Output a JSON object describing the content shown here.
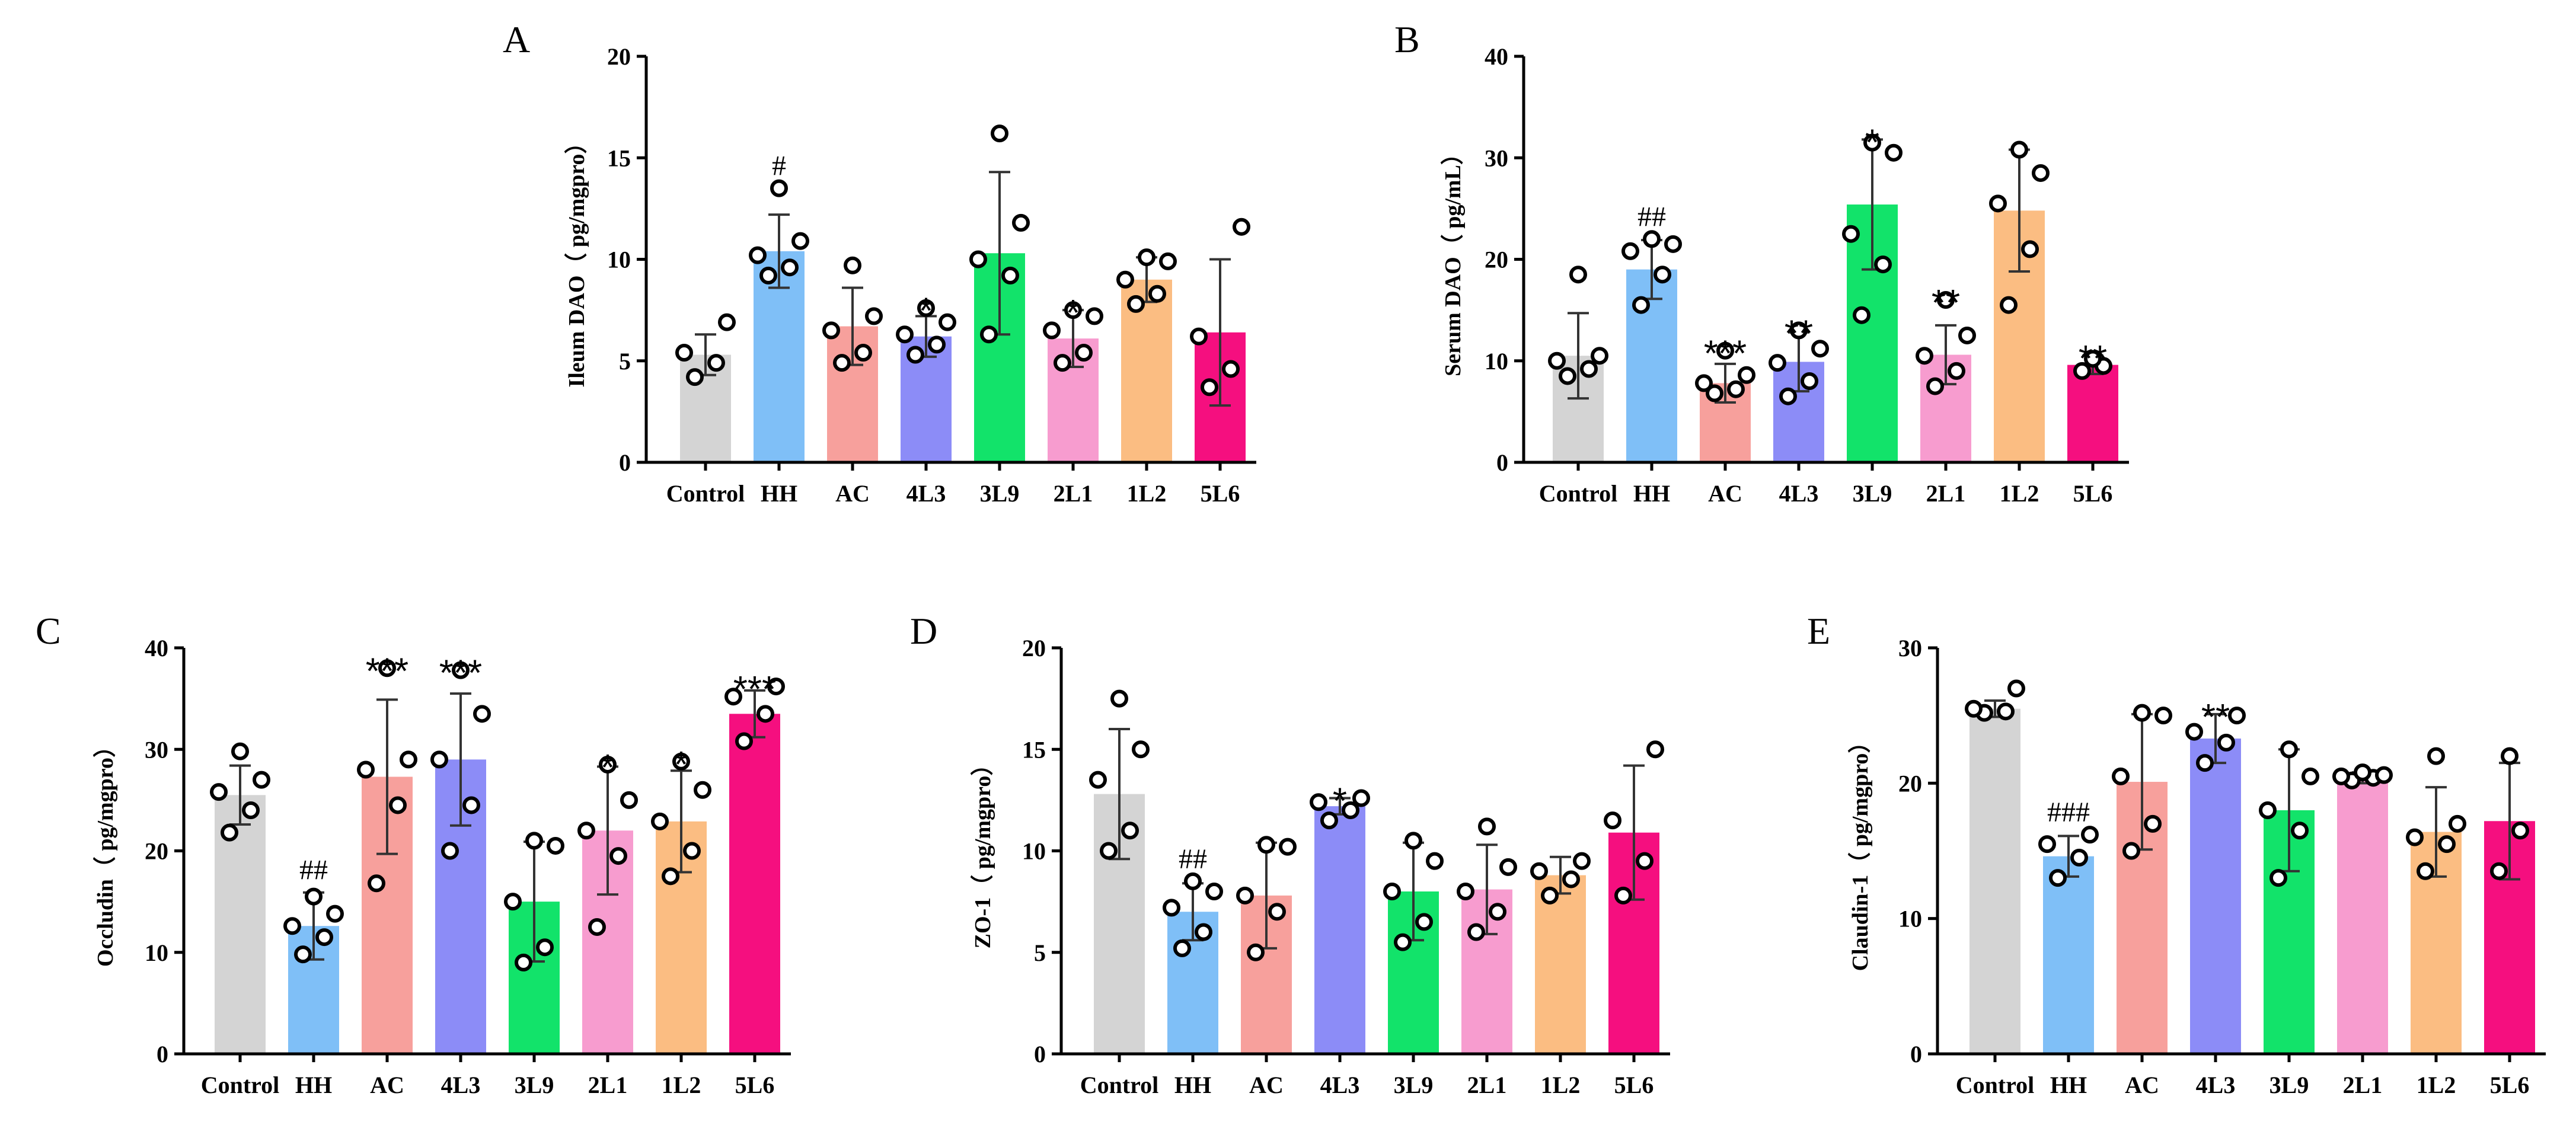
{
  "chart_data": [
    {
      "type": "bar",
      "panel": "A",
      "ylabel": "Ileum DAO（ pg/mgpro）",
      "ylim": [
        0,
        20
      ],
      "yticks": [
        0,
        5,
        10,
        15,
        20
      ],
      "categories": [
        "Control",
        "HH",
        "AC",
        "4L3",
        "3L9",
        "2L1",
        "1L2",
        "5L6"
      ],
      "colors": [
        "#d4d4d4",
        "#7fbff7",
        "#f7a09c",
        "#8c8cf7",
        "#12e36a",
        "#f79ccf",
        "#fbbd82",
        "#f50f7f"
      ],
      "values": [
        5.3,
        10.4,
        6.7,
        6.2,
        10.3,
        6.1,
        9.0,
        6.4
      ],
      "error": [
        1.0,
        1.8,
        1.9,
        1.0,
        4.0,
        1.4,
        1.1,
        3.6
      ],
      "points": [
        [
          4.2,
          4.9,
          5.4,
          6.9
        ],
        [
          9.2,
          9.6,
          10.2,
          10.9,
          13.5
        ],
        [
          4.9,
          5.4,
          6.5,
          7.2,
          9.7
        ],
        [
          5.3,
          5.8,
          6.3,
          6.9,
          7.6
        ],
        [
          6.3,
          9.2,
          10.0,
          11.8,
          16.2
        ],
        [
          4.9,
          5.4,
          6.5,
          7.2,
          7.5
        ],
        [
          7.8,
          8.3,
          9.0,
          9.9,
          10.1
        ],
        [
          3.7,
          4.6,
          6.2,
          11.6
        ]
      ],
      "sig": [
        "",
        "#",
        "",
        "*",
        "",
        "*",
        "",
        ""
      ]
    },
    {
      "type": "bar",
      "panel": "B",
      "ylabel": "Serum DAO（ pg/mL）",
      "ylim": [
        0,
        40
      ],
      "yticks": [
        0,
        10,
        20,
        30,
        40
      ],
      "categories": [
        "Control",
        "HH",
        "AC",
        "4L3",
        "3L9",
        "2L1",
        "1L2",
        "5L6"
      ],
      "colors": [
        "#d4d4d4",
        "#7fbff7",
        "#f7a09c",
        "#8c8cf7",
        "#12e36a",
        "#f79ccf",
        "#fbbd82",
        "#f50f7f"
      ],
      "values": [
        10.5,
        19.0,
        7.8,
        9.9,
        25.4,
        10.6,
        24.8,
        9.6
      ],
      "error": [
        4.2,
        2.9,
        1.9,
        2.9,
        6.4,
        2.9,
        6.0,
        0.9
      ],
      "points": [
        [
          8.5,
          9.2,
          10.0,
          10.5,
          18.5
        ],
        [
          15.5,
          18.5,
          20.8,
          21.5,
          22.0
        ],
        [
          6.8,
          7.2,
          7.8,
          8.6,
          11.0
        ],
        [
          6.5,
          8.0,
          9.8,
          11.2,
          13.0
        ],
        [
          14.5,
          19.5,
          22.5,
          30.5,
          31.5
        ],
        [
          7.5,
          9.0,
          10.5,
          12.5,
          16.0
        ],
        [
          15.5,
          21.0,
          25.5,
          28.5,
          30.8
        ],
        [
          9.0,
          9.5,
          10.2
        ]
      ],
      "sig": [
        "",
        "##",
        "***",
        "**",
        "*",
        "**",
        "",
        "**"
      ]
    },
    {
      "type": "bar",
      "panel": "C",
      "ylabel": "Occludin（ pg/mgpro）",
      "ylim": [
        0,
        40
      ],
      "yticks": [
        0,
        10,
        20,
        30,
        40
      ],
      "categories": [
        "Control",
        "HH",
        "AC",
        "4L3",
        "3L9",
        "2L1",
        "1L2",
        "5L6"
      ],
      "colors": [
        "#d4d4d4",
        "#7fbff7",
        "#f7a09c",
        "#8c8cf7",
        "#12e36a",
        "#f79ccf",
        "#fbbd82",
        "#f50f7f"
      ],
      "values": [
        25.5,
        12.6,
        27.3,
        29.0,
        15.0,
        22.0,
        22.9,
        33.5
      ],
      "error": [
        2.9,
        3.3,
        7.6,
        6.5,
        5.9,
        6.3,
        5.0,
        2.3
      ],
      "points": [
        [
          21.8,
          24.0,
          25.8,
          27.0,
          29.8
        ],
        [
          9.8,
          11.5,
          12.6,
          13.8,
          15.5
        ],
        [
          16.8,
          24.5,
          28.0,
          29.0,
          38.0
        ],
        [
          20.0,
          24.5,
          29.0,
          33.5,
          37.8
        ],
        [
          9.0,
          10.5,
          15.0,
          20.5,
          21.0
        ],
        [
          12.5,
          19.5,
          22.0,
          25.0,
          28.5
        ],
        [
          17.5,
          20.0,
          22.9,
          26.0,
          28.8
        ],
        [
          30.8,
          33.5,
          35.2,
          36.2
        ]
      ],
      "sig": [
        "",
        "##",
        "***",
        "***",
        "",
        "*",
        "*",
        "***"
      ]
    },
    {
      "type": "bar",
      "panel": "D",
      "ylabel": "ZO-1（ pg/mgpro）",
      "ylim": [
        0,
        20
      ],
      "yticks": [
        0,
        5,
        10,
        15,
        20
      ],
      "categories": [
        "Control",
        "HH",
        "AC",
        "4L3",
        "3L9",
        "2L1",
        "1L2",
        "5L6"
      ],
      "colors": [
        "#d4d4d4",
        "#7fbff7",
        "#f7a09c",
        "#8c8cf7",
        "#12e36a",
        "#f79ccf",
        "#fbbd82",
        "#f50f7f"
      ],
      "values": [
        12.8,
        7.0,
        7.8,
        12.2,
        8.0,
        8.1,
        8.8,
        10.9
      ],
      "error": [
        3.2,
        1.4,
        2.6,
        0.4,
        2.4,
        2.2,
        0.9,
        3.3
      ],
      "points": [
        [
          10.0,
          11.0,
          13.5,
          15.0,
          17.5
        ],
        [
          5.2,
          6.0,
          7.2,
          8.0,
          8.5
        ],
        [
          5.0,
          7.0,
          7.8,
          10.2,
          10.3
        ],
        [
          11.5,
          12.0,
          12.4,
          12.6
        ],
        [
          5.5,
          6.5,
          8.0,
          9.5,
          10.5
        ],
        [
          6.0,
          7.0,
          8.0,
          9.2,
          11.2
        ],
        [
          7.8,
          8.6,
          9.0,
          9.5
        ],
        [
          7.8,
          9.5,
          11.5,
          15.0
        ]
      ],
      "sig": [
        "",
        "##",
        "",
        "*",
        "",
        "",
        "",
        ""
      ]
    },
    {
      "type": "bar",
      "panel": "E",
      "ylabel": "Claudin-1（ pg/mgpro）",
      "ylim": [
        0,
        30
      ],
      "yticks": [
        0,
        10,
        20,
        30
      ],
      "categories": [
        "Control",
        "HH",
        "AC",
        "4L3",
        "3L9",
        "2L1",
        "1L2",
        "5L6"
      ],
      "colors": [
        "#d4d4d4",
        "#7fbff7",
        "#f7a09c",
        "#8c8cf7",
        "#12e36a",
        "#f79ccf",
        "#fbbd82",
        "#f50f7f"
      ],
      "values": [
        25.5,
        14.6,
        20.1,
        23.3,
        18.0,
        20.4,
        16.4,
        17.2
      ],
      "error": [
        0.6,
        1.5,
        5.0,
        1.8,
        4.5,
        0.4,
        3.3,
        4.3
      ],
      "points": [
        [
          25.2,
          25.3,
          25.5,
          27.0
        ],
        [
          13.0,
          14.5,
          15.5,
          16.2
        ],
        [
          15.0,
          17.0,
          20.5,
          25.0,
          25.2
        ],
        [
          21.5,
          23.0,
          23.8,
          25.0
        ],
        [
          13.0,
          16.5,
          18.0,
          20.5,
          22.5
        ],
        [
          20.2,
          20.4,
          20.5,
          20.6,
          20.8
        ],
        [
          13.5,
          15.5,
          16.0,
          17.0,
          22.0
        ],
        [
          13.5,
          16.5,
          22.0
        ]
      ],
      "sig": [
        "",
        "###",
        "",
        "**",
        "",
        "",
        "",
        ""
      ]
    }
  ]
}
